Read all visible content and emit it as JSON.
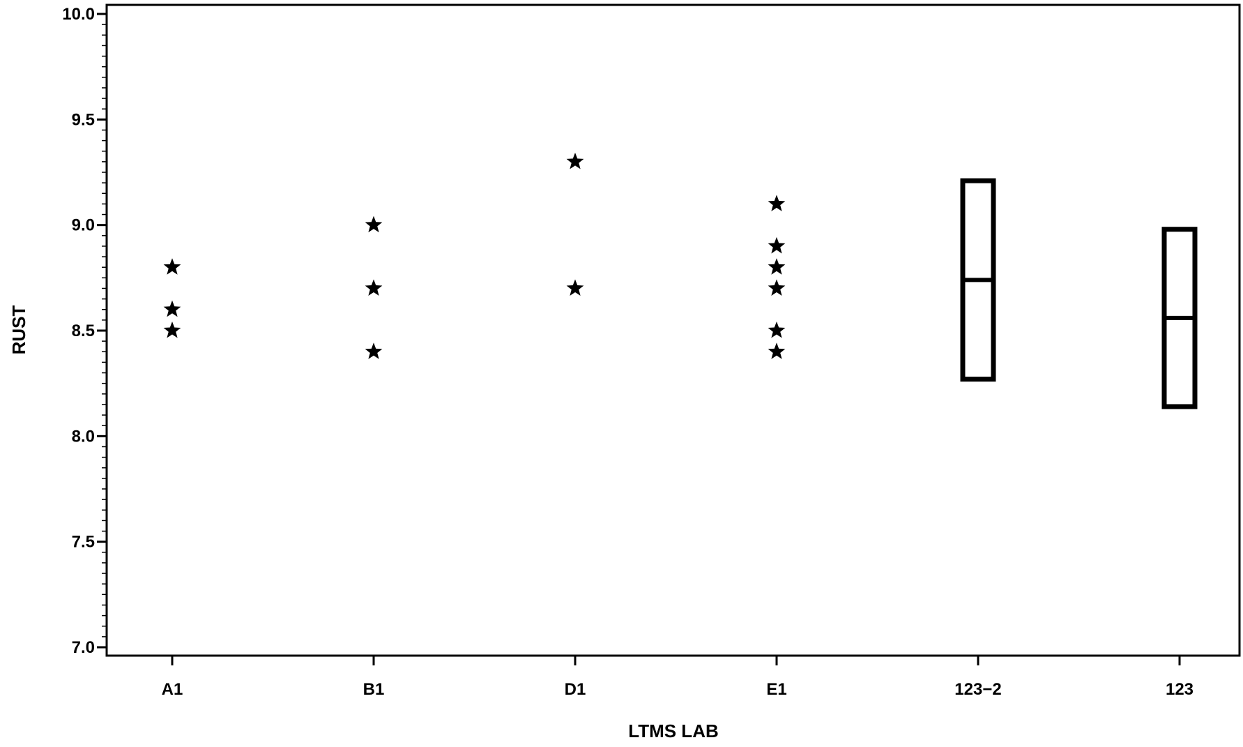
{
  "chart_data": {
    "type": "scatter",
    "title": "",
    "xlabel": "LTMS LAB",
    "ylabel": "RUST",
    "ylim": [
      7.0,
      10.0
    ],
    "yticks": [
      "7.0",
      "7.5",
      "8.0",
      "8.5",
      "9.0",
      "9.5",
      "10.0"
    ],
    "ytick_values": [
      7.0,
      7.5,
      8.0,
      8.5,
      9.0,
      9.5,
      10.0
    ],
    "y_minor_step": 0.05,
    "grid": false,
    "categories": [
      "A1",
      "B1",
      "D1",
      "E1",
      "123−2",
      "123"
    ],
    "points": [
      {
        "category": "A1",
        "values": [
          8.8,
          8.6,
          8.5
        ]
      },
      {
        "category": "B1",
        "values": [
          9.0,
          8.7,
          8.4
        ]
      },
      {
        "category": "D1",
        "values": [
          9.3,
          8.7
        ]
      },
      {
        "category": "E1",
        "values": [
          9.1,
          8.9,
          8.8,
          8.7,
          8.5,
          8.4
        ]
      }
    ],
    "marker": "star",
    "boxes": [
      {
        "category": "123−2",
        "low": 8.27,
        "mid": 8.74,
        "high": 9.21
      },
      {
        "category": "123",
        "low": 8.14,
        "mid": 8.56,
        "high": 8.98
      }
    ]
  }
}
